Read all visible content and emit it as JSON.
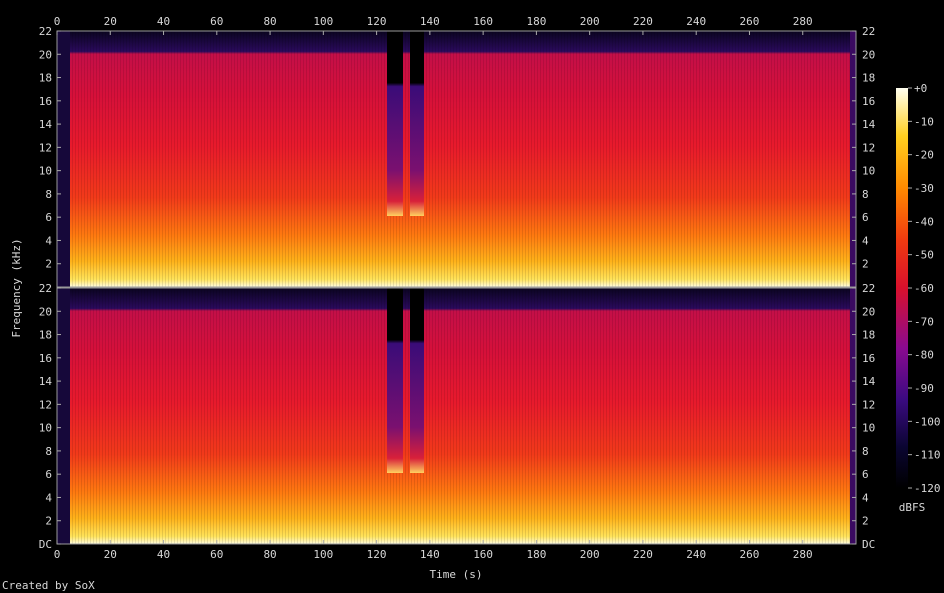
{
  "chart_data": {
    "type": "heatmap",
    "title": "",
    "xlabel": "Time (s)",
    "ylabel": "Frequency (kHz)",
    "xlim": [
      0,
      300
    ],
    "ylim_khz": [
      0,
      22
    ],
    "x_ticks": [
      "0",
      "20",
      "40",
      "60",
      "80",
      "100",
      "120",
      "140",
      "160",
      "180",
      "200",
      "220",
      "240",
      "260",
      "280"
    ],
    "y_ticks_top": [
      "22",
      "20",
      "18",
      "16",
      "14",
      "12",
      "10",
      "8",
      "6",
      "4",
      "2"
    ],
    "y_ticks_bottom": [
      "22",
      "20",
      "18",
      "16",
      "14",
      "12",
      "10",
      "8",
      "6",
      "4",
      "2",
      "DC"
    ],
    "channels": [
      {
        "name": "",
        "cutoff_khz": 20,
        "quiet_segments_s": [
          [
            124,
            130
          ],
          [
            134,
            139
          ]
        ]
      },
      {
        "name": "",
        "cutoff_khz": 20,
        "quiet_segments_s": [
          [
            124,
            130
          ],
          [
            134,
            139
          ]
        ]
      }
    ],
    "colorbar": {
      "label": "dBFS",
      "range_db": [
        -120,
        0
      ],
      "ticks": [
        "+0",
        "-10",
        "-20",
        "-30",
        "-40",
        "-50",
        "-60",
        "-70",
        "-80",
        "-90",
        "-100",
        "-110",
        "-120"
      ]
    },
    "duration_s": 298
  },
  "footer": {
    "credit": "Created by SoX"
  }
}
